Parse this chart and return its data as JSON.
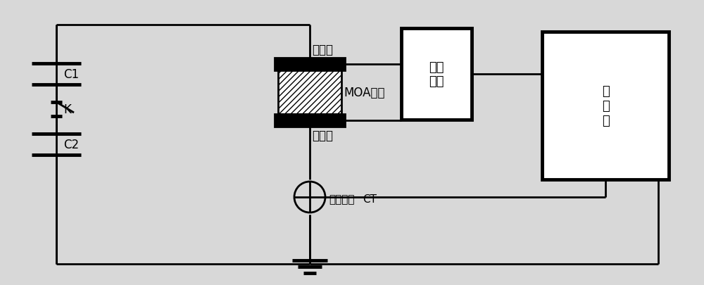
{
  "bg_color": "#d8d8d8",
  "line_color": "#000000",
  "lw": 2.0,
  "lw_thick": 3.5,
  "fig_width": 10.0,
  "fig_height": 4.06,
  "dpi": 100,
  "xlim": [
    0,
    100
  ],
  "ylim": [
    0,
    40.6
  ],
  "C1_label": "C1",
  "C2_label": "C2",
  "K_label": "K",
  "label_yajian_top": "压接件",
  "label_yajian_bot": "压接件",
  "label_moa": "MOA试品",
  "label_probe": [
    "高压",
    "探头"
  ],
  "label_scope": [
    "示",
    "波",
    "器"
  ],
  "label_rogowski": "罗氏线圈",
  "label_ct": "CT",
  "font_size_main": 12,
  "font_size_box": 13
}
